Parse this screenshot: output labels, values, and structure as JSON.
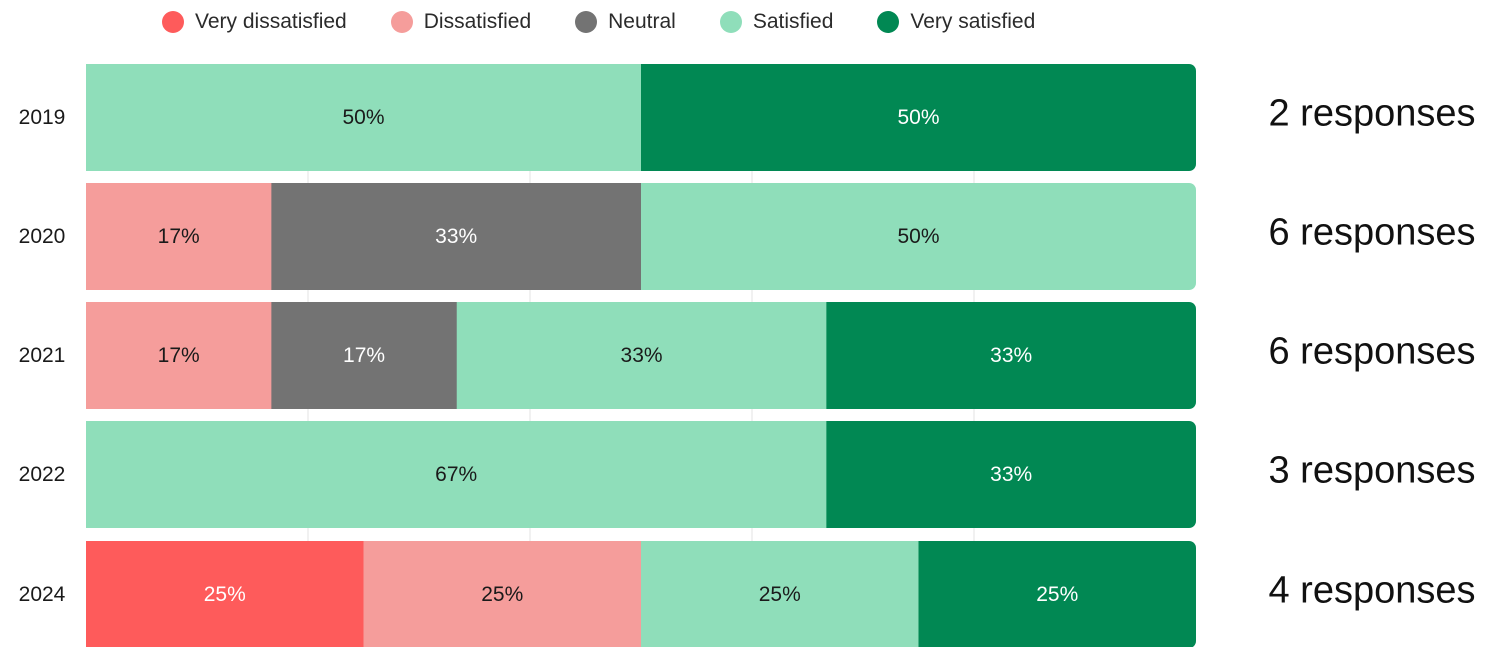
{
  "chart_data": {
    "type": "bar",
    "orientation": "horizontal",
    "stacked": true,
    "normalized": true,
    "categories": [
      "2019",
      "2020",
      "2021",
      "2022",
      "2024"
    ],
    "series": [
      {
        "name": "Very dissatisfied",
        "color": "#fe5b5b",
        "text_color": "#ffffff",
        "values": [
          0,
          0,
          0,
          0,
          25
        ],
        "labels": [
          "",
          "",
          "",
          "",
          "25%"
        ]
      },
      {
        "name": "Dissatisfied",
        "color": "#f59d9b",
        "text_color": "#1a1a1a",
        "values": [
          0,
          16.7,
          16.7,
          0,
          25
        ],
        "labels": [
          "",
          "17%",
          "17%",
          "",
          "25%"
        ]
      },
      {
        "name": "Neutral",
        "color": "#737373",
        "text_color": "#ffffff",
        "values": [
          0,
          33.3,
          16.7,
          0,
          0
        ],
        "labels": [
          "",
          "33%",
          "17%",
          "",
          ""
        ]
      },
      {
        "name": "Satisfied",
        "color": "#8fdeba",
        "text_color": "#1a1a1a",
        "values": [
          50,
          50,
          33.3,
          66.7,
          25
        ],
        "labels": [
          "50%",
          "50%",
          "33%",
          "67%",
          "25%"
        ]
      },
      {
        "name": "Very satisfied",
        "color": "#018853",
        "text_color": "#ffffff",
        "values": [
          50,
          0,
          33.3,
          33.3,
          25
        ],
        "labels": [
          "50%",
          "",
          "33%",
          "33%",
          "25%"
        ]
      }
    ],
    "annotations": [
      "2 responses",
      "6 responses",
      "6 responses",
      "3 responses",
      "4 responses"
    ],
    "xlim": [
      0,
      100
    ],
    "grid": true,
    "legend_position": "top"
  }
}
